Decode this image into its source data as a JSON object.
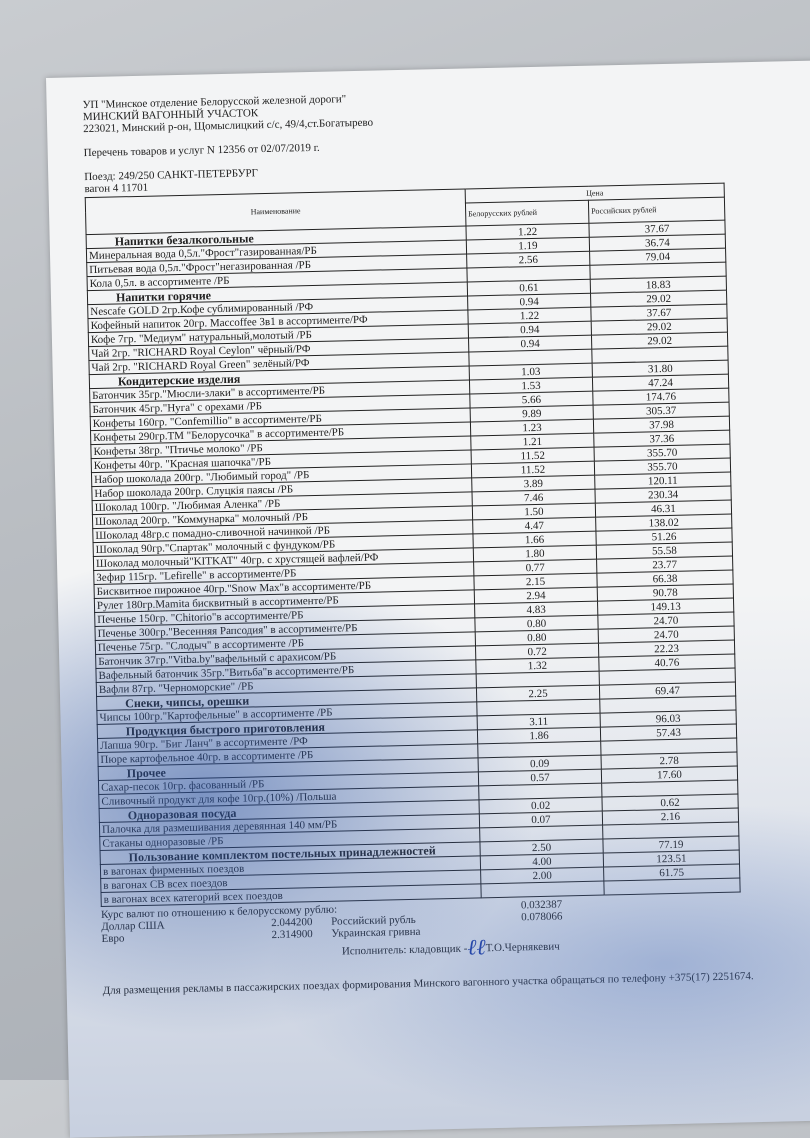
{
  "header": {
    "org": "УП \"Минское отделение Белорусской железной дороги\"",
    "unit": "МИНСКИЙ ВАГОННЫЙ УЧАСТОК",
    "address": "223021, Минский р-он, Щомыслицкий с/с, 49/4,ст.Богатырево",
    "list_title": "Перечень товаров и услуг N 12356 от 02/07/2019 г.",
    "train": "Поезд: 249/250 САНКТ-ПЕТЕРБУРГ",
    "car": "вагон 4 11701"
  },
  "table": {
    "col_name": "Наименование",
    "col_price": "Цена",
    "col_byn": "Белорусских рублей",
    "col_rub": "Российских рублей",
    "rows": [
      {
        "name": "Напитки безалкогольные",
        "by": "1.22",
        "ru": "37.67",
        "section": true
      },
      {
        "name": "Минеральная вода 0,5л.\"Фрост\"газированная/РБ",
        "by": "1.19",
        "ru": "36.74"
      },
      {
        "name": "Питьевая вода 0,5л.\"Фрост\"негазированная /РБ",
        "by": "2.56",
        "ru": "79.04"
      },
      {
        "name": "Кола 0,5л. в ассортименте /РБ",
        "by": "",
        "ru": ""
      },
      {
        "name": "Напитки горячие",
        "by": "0.61",
        "ru": "18.83",
        "section": true
      },
      {
        "name": "Nescafe GOLD 2гр.Кофе сублимированный /РФ",
        "by": "0.94",
        "ru": "29.02"
      },
      {
        "name": "Кофейный напиток 20гр. Maccoffee 3в1 в ассортименте/РФ",
        "by": "1.22",
        "ru": "37.67"
      },
      {
        "name": "Кофе 7гр. \"Медиум\" натуральный,молотый /РБ",
        "by": "0.94",
        "ru": "29.02"
      },
      {
        "name": "Чай 2гр. \"RICHARD Royal Ceylon\" чёрный/РФ",
        "by": "0.94",
        "ru": "29.02"
      },
      {
        "name": "Чай 2гр. \"RICHARD Royal Green\" зелёный/РФ",
        "by": "",
        "ru": ""
      },
      {
        "name": "Кондитерские изделия",
        "by": "1.03",
        "ru": "31.80",
        "section": true
      },
      {
        "name": "Батончик 35гр.\"Мюсли-злаки\" в ассортименте/РБ",
        "by": "1.53",
        "ru": "47.24"
      },
      {
        "name": "Батончик 45гр.\"Нуга\" с орехами /РБ",
        "by": "5.66",
        "ru": "174.76"
      },
      {
        "name": "Конфеты 160гр. \"Confemillio\" в ассортименте/РБ",
        "by": "9.89",
        "ru": "305.37"
      },
      {
        "name": "Конфеты 290гр.ТМ \"Белорусочка\" в ассортименте/РБ",
        "by": "1.23",
        "ru": "37.98"
      },
      {
        "name": "Конфеты 38гр. \"Птичье молоко\" /РБ",
        "by": "1.21",
        "ru": "37.36"
      },
      {
        "name": "Конфеты 40гр. \"Красная шапочка\"/РБ",
        "by": "11.52",
        "ru": "355.70"
      },
      {
        "name": "Набор шоколада 200гр. \"Любимый город\" /РБ",
        "by": "11.52",
        "ru": "355.70"
      },
      {
        "name": "Набор шоколада 200гр. Слуцкія паясы /РБ",
        "by": "3.89",
        "ru": "120.11"
      },
      {
        "name": "Шоколад 100гр. \"Любимая Аленка\" /РБ",
        "by": "7.46",
        "ru": "230.34"
      },
      {
        "name": "Шоколад 200гр. \"Коммунарка\" молочный /РБ",
        "by": "1.50",
        "ru": "46.31"
      },
      {
        "name": "Шоколад 48гр.с помадно-сливочной начинкой /РБ",
        "by": "4.47",
        "ru": "138.02"
      },
      {
        "name": "Шоколад 90гр.\"Спартак\" молочный с фундуком/РБ",
        "by": "1.66",
        "ru": "51.26"
      },
      {
        "name": "Шоколад  молочный\"KITKAT\" 40гр. с хрустящей  вафлей/РФ",
        "by": "1.80",
        "ru": "55.58"
      },
      {
        "name": "Зефир 115гр. \"Lefirelle\" в ассортименте/РБ",
        "by": "0.77",
        "ru": "23.77"
      },
      {
        "name": "Бисквитное пирожное 40гр.\"Snow Max\"в ассортименте/РБ",
        "by": "2.15",
        "ru": "66.38"
      },
      {
        "name": "Рулет 180гр.Mamita бисквитный в ассортименте/РБ",
        "by": "2.94",
        "ru": "90.78"
      },
      {
        "name": "Печенье 150гр. \"Chitorio\"в ассортименте/РБ",
        "by": "4.83",
        "ru": "149.13"
      },
      {
        "name": "Печенье 300гр.\"Весенняя Рапсодия\" в ассортименте/РБ",
        "by": "0.80",
        "ru": "24.70"
      },
      {
        "name": "Печенье 75гр. \"Слодыч\" в ассортименте /РБ",
        "by": "0.80",
        "ru": "24.70"
      },
      {
        "name": "Батончик 37гр.\"Vitba.by\"вафельный с арахисом/РБ",
        "by": "0.72",
        "ru": "22.23"
      },
      {
        "name": "Вафельный батончик 35гр.\"Витьба\"в ассортименте/РБ",
        "by": "1.32",
        "ru": "40.76"
      },
      {
        "name": "Вафли 87гр. \"Черноморские\" /РБ",
        "by": "",
        "ru": ""
      },
      {
        "name": "Снеки, чипсы, орешки",
        "by": "2.25",
        "ru": "69.47",
        "section": true
      },
      {
        "name": "Чипсы 100гр.\"Картофельные\" в ассортименте /РБ",
        "by": "",
        "ru": ""
      },
      {
        "name": "Продукция быстрого приготовления",
        "by": "3.11",
        "ru": "96.03",
        "section": true
      },
      {
        "name": "Лапша 90гр. \"Биг Ланч\" в ассортименте /РФ",
        "by": "1.86",
        "ru": "57.43"
      },
      {
        "name": "Пюре картофельное 40гр. в ассортименте /РБ",
        "by": "",
        "ru": ""
      },
      {
        "name": "Прочее",
        "by": "0.09",
        "ru": "2.78",
        "section": true
      },
      {
        "name": "Сахар-песок 10гр. фасованный /РБ",
        "by": "0.57",
        "ru": "17.60"
      },
      {
        "name": "Сливочный продукт для кофе 10гр.(10%) /Польша",
        "by": "",
        "ru": ""
      },
      {
        "name": "Одноразовая посуда",
        "by": "0.02",
        "ru": "0.62",
        "section": true
      },
      {
        "name": "Палочка для размешивания деревянная 140 мм/РБ",
        "by": "0.07",
        "ru": "2.16"
      },
      {
        "name": "Стаканы одноразовые /РБ",
        "by": "",
        "ru": ""
      },
      {
        "name": "Пользование комплектом постельных принадлежностей",
        "by": "2.50",
        "ru": "77.19",
        "section": true
      },
      {
        "name": "в вагонах фирменных поездов",
        "by": "4.00",
        "ru": "123.51"
      },
      {
        "name": "в вагонах СВ всех поездов",
        "by": "2.00",
        "ru": "61.75"
      },
      {
        "name": "в вагонах всех категорий всех поездов",
        "by": "",
        "ru": ""
      }
    ]
  },
  "footer": {
    "rates_title": "Курс валют по отношению к белорусскому рублю:",
    "rate1": "0.032387",
    "usd": "Доллар США",
    "usd_val": "2.044200",
    "rub": "Российский рубль",
    "rub_val": "0.078066",
    "eur": "Евро",
    "eur_val": "2.314900",
    "uah": "Украинская гривна",
    "executor": "Исполнитель: кладовщик -",
    "executor_name": "Т.О.Чернякевич",
    "ad": "Для размещения рекламы в пассажирских поездах формирования Минского вагонного участка обращаться по телефону +375(17) 2251674."
  }
}
